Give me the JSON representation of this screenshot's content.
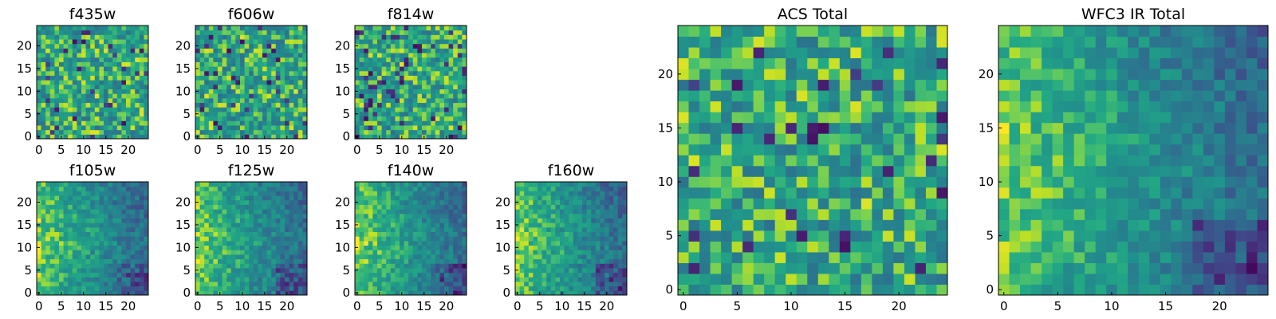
{
  "colors": {
    "colormap": "viridis",
    "background": "#ffffff",
    "frame": "#000000"
  },
  "chart_data": [
    {
      "type": "heatmap",
      "title": "f435w",
      "grid_size": 25,
      "xlim": [
        0,
        24
      ],
      "ylim": [
        0,
        24
      ],
      "xticks": [
        "0",
        "5",
        "10",
        "15",
        "20"
      ],
      "yticks": [
        "0",
        "5",
        "10",
        "15",
        "20"
      ],
      "pattern": "noise",
      "clim": [
        0,
        1
      ]
    },
    {
      "type": "heatmap",
      "title": "f606w",
      "grid_size": 25,
      "xlim": [
        0,
        24
      ],
      "ylim": [
        0,
        24
      ],
      "xticks": [
        "0",
        "5",
        "10",
        "15",
        "20"
      ],
      "yticks": [
        "0",
        "5",
        "10",
        "15",
        "20"
      ],
      "pattern": "noise",
      "clim": [
        0,
        1
      ]
    },
    {
      "type": "heatmap",
      "title": "f814w",
      "grid_size": 25,
      "xlim": [
        0,
        24
      ],
      "ylim": [
        0,
        24
      ],
      "xticks": [
        "0",
        "5",
        "10",
        "15",
        "20"
      ],
      "yticks": [
        "0",
        "5",
        "10",
        "15",
        "20"
      ],
      "pattern": "noise",
      "clim": [
        0,
        1
      ]
    },
    {
      "type": "heatmap",
      "title": "f105w",
      "grid_size": 25,
      "xlim": [
        0,
        24
      ],
      "ylim": [
        0,
        24
      ],
      "xticks": [
        "0",
        "5",
        "10",
        "15",
        "20"
      ],
      "yticks": [
        "0",
        "5",
        "10",
        "15",
        "20"
      ],
      "pattern": "smooth",
      "clim": [
        0,
        1
      ]
    },
    {
      "type": "heatmap",
      "title": "f125w",
      "grid_size": 25,
      "xlim": [
        0,
        24
      ],
      "ylim": [
        0,
        24
      ],
      "xticks": [
        "0",
        "5",
        "10",
        "15",
        "20"
      ],
      "yticks": [
        "0",
        "5",
        "10",
        "15",
        "20"
      ],
      "pattern": "smooth",
      "clim": [
        0,
        1
      ]
    },
    {
      "type": "heatmap",
      "title": "f140w",
      "grid_size": 25,
      "xlim": [
        0,
        24
      ],
      "ylim": [
        0,
        24
      ],
      "xticks": [
        "0",
        "5",
        "10",
        "15",
        "20"
      ],
      "yticks": [
        "0",
        "5",
        "10",
        "15",
        "20"
      ],
      "pattern": "smooth",
      "clim": [
        0,
        1
      ]
    },
    {
      "type": "heatmap",
      "title": "f160w",
      "grid_size": 25,
      "xlim": [
        0,
        24
      ],
      "ylim": [
        0,
        24
      ],
      "xticks": [
        "0",
        "5",
        "10",
        "15",
        "20"
      ],
      "yticks": [
        "0",
        "5",
        "10",
        "15",
        "20"
      ],
      "pattern": "smooth",
      "clim": [
        0,
        1
      ]
    },
    {
      "type": "heatmap",
      "title": "ACS Total",
      "grid_size": 25,
      "xlim": [
        0,
        24
      ],
      "ylim": [
        0,
        24
      ],
      "xticks": [
        "0",
        "5",
        "10",
        "15",
        "20"
      ],
      "yticks": [
        "0",
        "5",
        "10",
        "15",
        "20"
      ],
      "pattern": "noise",
      "clim": [
        0,
        1
      ]
    },
    {
      "type": "heatmap",
      "title": "WFC3 IR Total",
      "grid_size": 25,
      "xlim": [
        0,
        24
      ],
      "ylim": [
        0,
        24
      ],
      "xticks": [
        "0",
        "5",
        "10",
        "15",
        "20"
      ],
      "yticks": [
        "0",
        "5",
        "10",
        "15",
        "20"
      ],
      "pattern": "smooth",
      "clim": [
        0,
        1
      ]
    }
  ]
}
